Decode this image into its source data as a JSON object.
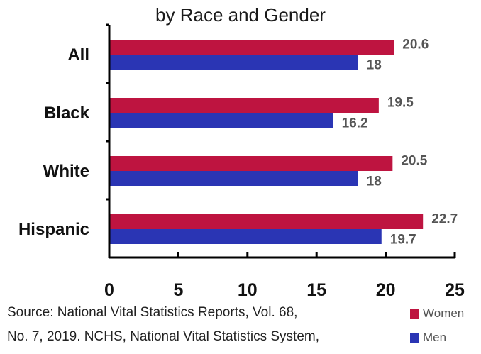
{
  "chart_data": {
    "type": "bar",
    "orientation": "horizontal",
    "title": "by Race and Gender",
    "categories": [
      "All",
      "Black",
      "White",
      "Hispanic"
    ],
    "series": [
      {
        "name": "Women",
        "values": [
          20.6,
          19.5,
          20.5,
          22.7
        ],
        "color": "#be1440"
      },
      {
        "name": "Men",
        "values": [
          18,
          16.2,
          18,
          19.7
        ],
        "color": "#2a35b4"
      }
    ],
    "xlim": [
      0,
      25
    ],
    "xticks": [
      0,
      5,
      10,
      15,
      20,
      25
    ],
    "legend_position": "bottom-right",
    "grid": false
  },
  "source": {
    "line1": "Source: National Vital Statistics Reports, Vol. 68,",
    "line2": "No. 7, 2019. NCHS, National Vital Statistics System,"
  }
}
